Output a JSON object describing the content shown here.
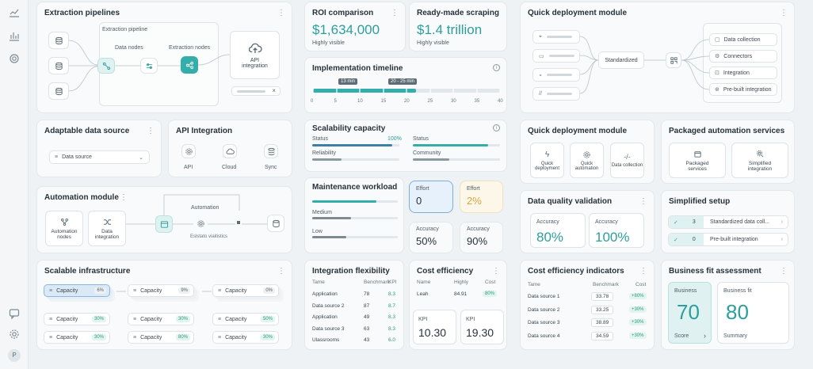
{
  "sidebar": {
    "avatar": "P",
    "icons": [
      "line-chart-icon",
      "bar-chart-icon",
      "gear-icon",
      "chat-icon",
      "settings-icon"
    ]
  },
  "extraction": {
    "title": "Extraction pipelines",
    "inner_title": "Extraction pipeline",
    "data_nodes": "Data nodes",
    "extraction_nodes": "Extraction nodes",
    "api": "API integration",
    "close": "×"
  },
  "roi": {
    "title": "ROI comparison",
    "value": "$1,634,000",
    "sub": "Highly visible"
  },
  "scraping": {
    "title": "Ready-made scraping",
    "value": "$1.4 trillion",
    "sub": "Highly visible"
  },
  "timeline": {
    "title": "Implementation timeline",
    "tag1": "13 min",
    "tag2": "20 - 25 min",
    "ticks": [
      "0",
      "5",
      "10",
      "15",
      "20",
      "25",
      "30",
      "35",
      "40"
    ],
    "fill_fraction": 0.55
  },
  "quick1": {
    "title": "Quick deployment module",
    "center": "Standardized",
    "outputs": [
      "Data collection",
      "Connectors",
      "Integration",
      "Pre-built integration"
    ]
  },
  "adaptable": {
    "title": "Adaptable data source",
    "select": "Data source"
  },
  "api_int": {
    "title": "API Integration",
    "items": [
      "API",
      "Cloud",
      "Sync"
    ]
  },
  "scalability": {
    "title": "Scalability capacity",
    "rows": [
      {
        "label": "Status",
        "value": "100%",
        "fill": 0.92
      },
      {
        "label": "Status",
        "value": "",
        "fill": 0.86
      },
      {
        "label": "Reliability",
        "value": "",
        "fill": 0.34
      },
      {
        "label": "Community",
        "value": "",
        "fill": 0.42
      }
    ]
  },
  "quick2": {
    "title": "Quick deployment module",
    "items": [
      "Quick deployment",
      "Quick automation",
      "Data collection"
    ]
  },
  "packaged": {
    "title": "Packaged automation services",
    "items": [
      "Packaged services",
      "Simplified integration"
    ]
  },
  "automation": {
    "title": "Automation module",
    "items": [
      "Automation nodes",
      "Data integration"
    ],
    "flow_label": "Automation",
    "sub_label": "Eslstato viaitistics"
  },
  "maintenance": {
    "title": "Maintenance workload",
    "rows": [
      {
        "label": "",
        "fill": 0.75
      },
      {
        "label": "Medium",
        "fill": 0.45
      },
      {
        "label": "Low",
        "fill": 0.4
      }
    ]
  },
  "effort": {
    "cards": [
      {
        "label": "Effort",
        "value": "0"
      },
      {
        "label": "Effort",
        "value": "2%"
      },
      {
        "label": "Accuracy",
        "value": "50%"
      },
      {
        "label": "Accuracy",
        "value": "90%"
      }
    ]
  },
  "dq": {
    "title": "Data quality validation",
    "items": [
      {
        "label": "Accuracy",
        "value": "80%"
      },
      {
        "label": "Accuracy",
        "value": "100%"
      }
    ]
  },
  "simplified": {
    "title": "Simplified setup",
    "items": [
      {
        "num": "3",
        "label": "Standardized data coll..."
      },
      {
        "num": "0",
        "label": "Pre-built integration"
      }
    ]
  },
  "scalable": {
    "title": "Scalable infrastructure",
    "rows": [
      [
        "Capacity",
        "6%",
        "Capacity",
        "9%",
        "Capacity",
        "0%"
      ],
      [
        "Capacity",
        "30%",
        "Capacity",
        "30%",
        "Capacity",
        "50%"
      ],
      [
        "Capacity",
        "30%",
        "Capacity",
        "80%",
        "Capacity",
        "30%"
      ]
    ]
  },
  "flex": {
    "title": "Integration flexibility",
    "headers": [
      "Tame",
      "Benchmark",
      "KPI"
    ],
    "rows": [
      [
        "Application",
        "78",
        "8.3"
      ],
      [
        "Data source 2",
        "87",
        "8.7"
      ],
      [
        "Application",
        "49",
        "8.3"
      ],
      [
        "Data source 3",
        "63",
        "8.3"
      ],
      [
        "Ulassrooms",
        "43",
        "6.0"
      ]
    ]
  },
  "cost": {
    "title": "Cost efficiency",
    "headers": [
      "Name",
      "Highly",
      "Cost"
    ],
    "row": [
      "Leah",
      "84.91",
      "80%"
    ],
    "kpis": [
      {
        "label": "KPI",
        "value": "10.30"
      },
      {
        "label": "KPI",
        "value": "19.30"
      }
    ]
  },
  "costind": {
    "title": "Cost efficiency indicators",
    "headers": [
      "Tame",
      "Benchmark",
      "Cost"
    ],
    "rows": [
      [
        "Data source 1",
        "33.78",
        "+80%"
      ],
      [
        "Data source 2",
        "33.25",
        "+30%"
      ],
      [
        "Data source 3",
        "38.89",
        "+30%"
      ],
      [
        "Data source 4",
        "34.59",
        "+30%"
      ]
    ]
  },
  "bfit": {
    "title": "Business fit assessment",
    "cards": [
      {
        "label": "Business",
        "value": "70",
        "footer": "Score",
        "arrow": "›"
      },
      {
        "label": "Business fit",
        "value": "80",
        "footer": "Summary"
      }
    ]
  },
  "dots": "⋮"
}
